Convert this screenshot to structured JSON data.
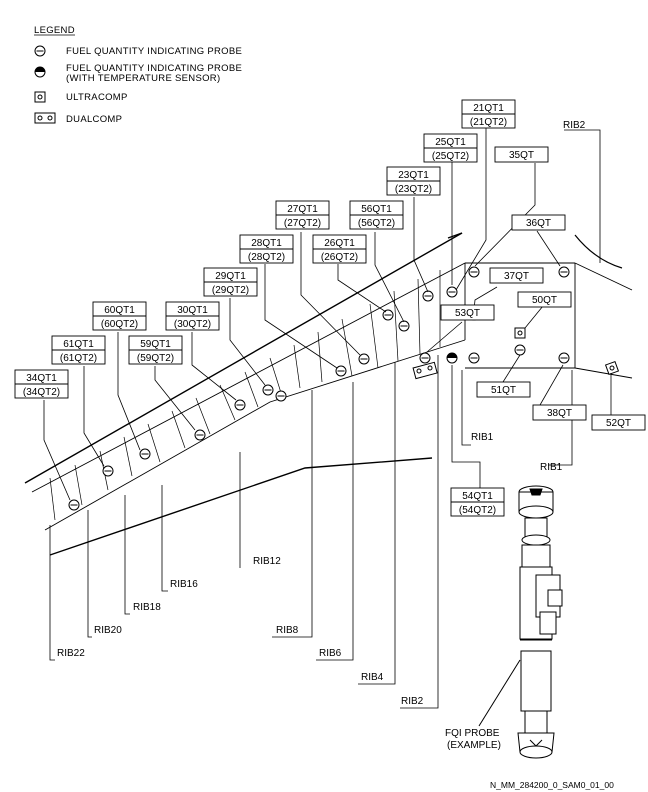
{
  "legend": {
    "title": "LEGEND",
    "items": [
      {
        "icon": "probe-icon",
        "label": "FUEL QUANTITY INDICATING PROBE",
        "label2": ""
      },
      {
        "icon": "probe-temp-sensor-icon",
        "label": "FUEL QUANTITY INDICATING PROBE",
        "label2": "(WITH TEMPERATURE SENSOR)"
      },
      {
        "icon": "ultracomp-icon",
        "label": "ULTRACOMP",
        "label2": ""
      },
      {
        "icon": "dualcomp-icon",
        "label": "DUALCOMP",
        "label2": ""
      }
    ]
  },
  "probe_labels": [
    {
      "id": "21qt1",
      "main": "21QT1",
      "alt": "(21QT2)"
    },
    {
      "id": "25qt1",
      "main": "25QT1",
      "alt": "(25QT2)"
    },
    {
      "id": "23qt1",
      "main": "23QT1",
      "alt": "(23QT2)"
    },
    {
      "id": "27qt1",
      "main": "27QT1",
      "alt": "(27QT2)"
    },
    {
      "id": "56qt1",
      "main": "56QT1",
      "alt": "(56QT2)"
    },
    {
      "id": "28qt1",
      "main": "28QT1",
      "alt": "(28QT2)"
    },
    {
      "id": "26qt1",
      "main": "26QT1",
      "alt": "(26QT2)"
    },
    {
      "id": "29qt1",
      "main": "29QT1",
      "alt": "(29QT2)"
    },
    {
      "id": "60qt1",
      "main": "60QT1",
      "alt": "(60QT2)"
    },
    {
      "id": "30qt1",
      "main": "30QT1",
      "alt": "(30QT2)"
    },
    {
      "id": "61qt1",
      "main": "61QT1",
      "alt": "(61QT2)"
    },
    {
      "id": "59qt1",
      "main": "59QT1",
      "alt": "(59QT2)"
    },
    {
      "id": "34qt1",
      "main": "34QT1",
      "alt": "(34QT2)"
    },
    {
      "id": "54qt1",
      "main": "54QT1",
      "alt": "(54QT2)"
    }
  ],
  "single_labels": [
    {
      "id": "35qt",
      "text": "35QT"
    },
    {
      "id": "36qt",
      "text": "36QT"
    },
    {
      "id": "37qt",
      "text": "37QT"
    },
    {
      "id": "50qt",
      "text": "50QT"
    },
    {
      "id": "53qt",
      "text": "53QT"
    },
    {
      "id": "51qt",
      "text": "51QT"
    },
    {
      "id": "38qt",
      "text": "38QT"
    },
    {
      "id": "52qt",
      "text": "52QT"
    }
  ],
  "ribs": {
    "rib2_top": "RIB2",
    "rib1_a": "RIB1",
    "rib1_b": "RIB1",
    "rib12": "RIB12",
    "rib16": "RIB16",
    "rib18": "RIB18",
    "rib20": "RIB20",
    "rib22": "RIB22",
    "rib8": "RIB8",
    "rib6": "RIB6",
    "rib4": "RIB4",
    "rib2_bottom": "RIB2"
  },
  "probe_example": {
    "line1": "FQI PROBE",
    "line2": "(EXAMPLE)"
  },
  "footer_id": "N_MM_284200_0_SAM0_01_00"
}
